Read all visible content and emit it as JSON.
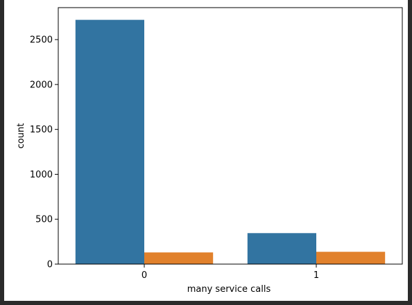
{
  "chart_data": {
    "type": "bar",
    "categories": [
      "0",
      "1"
    ],
    "series": [
      {
        "values": [
          2720,
          345
        ],
        "color": "#3274a1"
      },
      {
        "values": [
          130,
          137
        ],
        "color": "#e1812c"
      }
    ],
    "xlabel": "many service calls",
    "ylabel": "count",
    "ylim": [
      0,
      2856
    ],
    "yticks": [
      0,
      500,
      1000,
      1500,
      2000,
      2500
    ],
    "ytick_labels": [
      "0",
      "500",
      "1000",
      "1500",
      "2000",
      "2500"
    ],
    "grid": false,
    "legend": "none"
  }
}
